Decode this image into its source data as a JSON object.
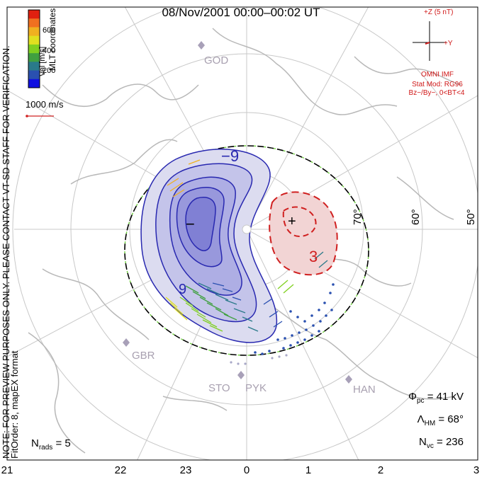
{
  "title": "08/Nov/2001  00:00–00:02  UT",
  "side_note_1": "NOTE: FOR PREVIEW PURPOSES ONLY. PLEASE CONTACT VT-SD STAFF FOR VERIFICATION.",
  "side_note_2": "FitOrder: 8,  mapEX format",
  "coords_label": "MLT coordinates",
  "colorbar": {
    "label": "Vel [m/s]",
    "ticks": [
      "600",
      "400",
      "200"
    ],
    "colors": [
      "#e02010",
      "#f07020",
      "#f0b020",
      "#e0e020",
      "#80d020",
      "#40a040",
      "#2a7a8a",
      "#2a50b0",
      "#1010e0"
    ]
  },
  "vector_scale": "1000 m/s",
  "stations": [
    "GOD",
    "GBR",
    "STO",
    "PYK",
    "HAN"
  ],
  "lat_labels": [
    "70°",
    "60°",
    "50°"
  ],
  "mlt_labels": [
    "21",
    "22",
    "23",
    "0",
    "1",
    "2",
    "3"
  ],
  "contours": {
    "neg_label": "−9",
    "pos_label": "3",
    "neg_mark": "−",
    "pos_mark": "+",
    "neg_label2": "9"
  },
  "imf": {
    "z_label": "+Z (5 nT)",
    "y_label": "+Y",
    "line1": "OMNI IMF",
    "line2": "Stat Mod: RG96",
    "line3": "Bz−/By−, 0<BT<4"
  },
  "stats": {
    "phi_pc": {
      "sym": "Φ",
      "sub": "pc",
      "value": "= 41 kV"
    },
    "lambda_hm": {
      "sym": "Λ",
      "sub": "HM",
      "value": "= 68°"
    },
    "n_vc": {
      "sym": "N",
      "sub": "vc",
      "value": "= 236"
    },
    "n_rads": {
      "sym": "N",
      "sub": "rads",
      "value": "= 5"
    }
  }
}
